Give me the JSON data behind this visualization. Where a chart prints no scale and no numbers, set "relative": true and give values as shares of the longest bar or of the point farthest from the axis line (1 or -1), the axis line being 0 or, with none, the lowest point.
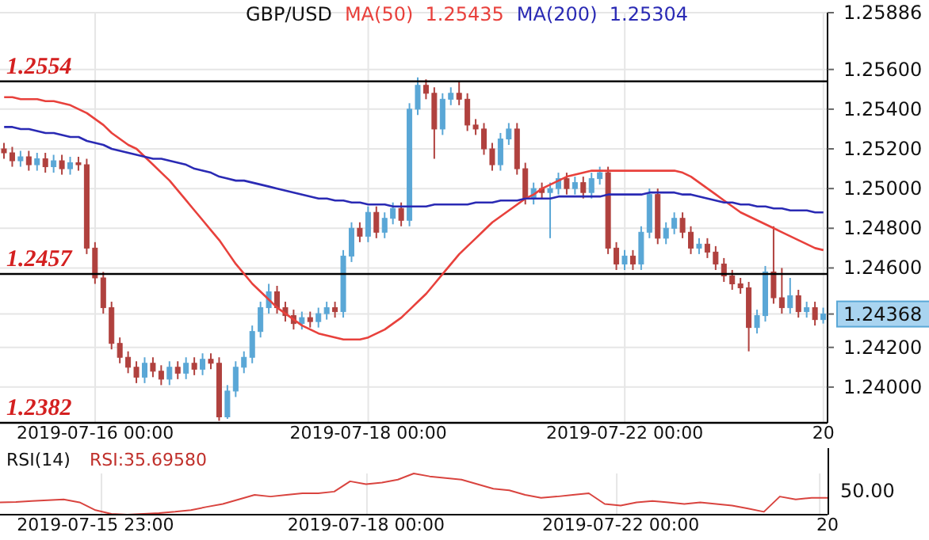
{
  "chart_data": [
    {
      "type": "candlestick",
      "title": "GBP/USD",
      "categories": [
        null,
        null,
        null,
        null,
        null,
        null,
        null,
        null,
        null,
        null,
        null,
        "2019-07-16 00:00",
        null,
        null,
        null,
        null,
        null,
        null,
        null,
        null,
        null,
        null,
        null,
        null,
        null,
        null,
        null,
        null,
        null,
        null,
        null,
        null,
        null,
        null,
        null,
        null,
        null,
        null,
        null,
        null,
        null,
        null,
        null,
        null,
        "2019-07-18 00:00",
        null,
        null,
        null,
        null,
        null,
        null,
        null,
        null,
        null,
        null,
        null,
        null,
        null,
        null,
        null,
        null,
        null,
        null,
        null,
        null,
        null,
        null,
        null,
        null,
        null,
        null,
        null,
        null,
        null,
        null,
        "2019-07-22 00:00",
        null,
        null,
        null,
        null,
        null,
        null,
        null,
        null,
        null,
        null,
        null,
        null,
        null,
        null,
        null,
        null,
        null,
        null,
        null,
        null,
        null,
        null,
        null,
        "20"
      ],
      "ohlc": [
        [
          1.252,
          1.2523,
          1.2515,
          1.2518
        ],
        [
          1.2518,
          1.2521,
          1.2511,
          1.2514
        ],
        [
          1.2514,
          1.2519,
          1.2511,
          1.2516
        ],
        [
          1.2516,
          1.2519,
          1.2509,
          1.2512
        ],
        [
          1.2512,
          1.2518,
          1.2509,
          1.2515
        ],
        [
          1.2515,
          1.2518,
          1.2508,
          1.2511
        ],
        [
          1.2511,
          1.2517,
          1.2508,
          1.2514
        ],
        [
          1.2514,
          1.2517,
          1.2507,
          1.251
        ],
        [
          1.251,
          1.2516,
          1.2507,
          1.2513
        ],
        [
          1.2513,
          1.2516,
          1.2509,
          1.2512
        ],
        [
          1.2512,
          1.2515,
          1.2467,
          1.247
        ],
        [
          1.247,
          1.2473,
          1.2452,
          1.2455
        ],
        [
          1.2455,
          1.2458,
          1.2437,
          1.244
        ],
        [
          1.244,
          1.2443,
          1.2419,
          1.2422
        ],
        [
          1.2422,
          1.2425,
          1.2412,
          1.2415
        ],
        [
          1.2415,
          1.2418,
          1.2407,
          1.241
        ],
        [
          1.241,
          1.2413,
          1.2402,
          1.2405
        ],
        [
          1.2405,
          1.2415,
          1.2402,
          1.2412
        ],
        [
          1.2412,
          1.2415,
          1.2405,
          1.2408
        ],
        [
          1.2408,
          1.2411,
          1.2401,
          1.2404
        ],
        [
          1.2404,
          1.2413,
          1.2401,
          1.241
        ],
        [
          1.241,
          1.2413,
          1.2404,
          1.2407
        ],
        [
          1.2407,
          1.2415,
          1.2404,
          1.2412
        ],
        [
          1.2412,
          1.2415,
          1.2406,
          1.2409
        ],
        [
          1.2409,
          1.2417,
          1.2406,
          1.2414
        ],
        [
          1.2414,
          1.2417,
          1.2409,
          1.2412
        ],
        [
          1.2412,
          1.2415,
          1.2383,
          1.2385
        ],
        [
          1.2385,
          1.2401,
          1.2384,
          1.2398
        ],
        [
          1.2398,
          1.2413,
          1.2395,
          1.241
        ],
        [
          1.241,
          1.2418,
          1.2407,
          1.2415
        ],
        [
          1.2415,
          1.2431,
          1.2412,
          1.2428
        ],
        [
          1.2428,
          1.2443,
          1.2425,
          1.244
        ],
        [
          1.244,
          1.2452,
          1.2437,
          1.2448
        ],
        [
          1.2448,
          1.2451,
          1.2437,
          1.244
        ],
        [
          1.244,
          1.2443,
          1.2433,
          1.2436
        ],
        [
          1.2436,
          1.2439,
          1.2429,
          1.2432
        ],
        [
          1.2432,
          1.2438,
          1.2429,
          1.2435
        ],
        [
          1.2435,
          1.2438,
          1.243,
          1.2433
        ],
        [
          1.2433,
          1.244,
          1.243,
          1.2437
        ],
        [
          1.2437,
          1.2443,
          1.2434,
          1.244
        ],
        [
          1.244,
          1.2443,
          1.2435,
          1.2438
        ],
        [
          1.2438,
          1.2469,
          1.2435,
          1.2466
        ],
        [
          1.2466,
          1.2483,
          1.2463,
          1.248
        ],
        [
          1.248,
          1.2483,
          1.2473,
          1.2476
        ],
        [
          1.2476,
          1.2491,
          1.2473,
          1.2488
        ],
        [
          1.2488,
          1.2491,
          1.2475,
          1.2478
        ],
        [
          1.2478,
          1.2488,
          1.2475,
          1.2485
        ],
        [
          1.2485,
          1.2493,
          1.2482,
          1.249
        ],
        [
          1.249,
          1.2493,
          1.2481,
          1.2484
        ],
        [
          1.2484,
          1.2543,
          1.2481,
          1.254
        ],
        [
          1.254,
          1.2556,
          1.2537,
          1.2552
        ],
        [
          1.2552,
          1.2555,
          1.2545,
          1.2548
        ],
        [
          1.2548,
          1.2551,
          1.2515,
          1.253
        ],
        [
          1.253,
          1.2548,
          1.2527,
          1.2545
        ],
        [
          1.2545,
          1.2551,
          1.2542,
          1.2548
        ],
        [
          1.2548,
          1.2554,
          1.2542,
          1.2545
        ],
        [
          1.2545,
          1.2548,
          1.2529,
          1.2532
        ],
        [
          1.2532,
          1.2535,
          1.2527,
          1.253
        ],
        [
          1.253,
          1.2533,
          1.2517,
          1.252
        ],
        [
          1.252,
          1.2523,
          1.2509,
          1.2512
        ],
        [
          1.2512,
          1.2528,
          1.2509,
          1.2525
        ],
        [
          1.2525,
          1.2533,
          1.2522,
          1.253
        ],
        [
          1.253,
          1.2533,
          1.2507,
          1.251
        ],
        [
          1.251,
          1.2513,
          1.2492,
          1.2495
        ],
        [
          1.2495,
          1.2503,
          1.2492,
          1.25
        ],
        [
          1.25,
          1.2503,
          1.2495,
          1.2498
        ],
        [
          1.2498,
          1.2503,
          1.2475,
          1.25
        ],
        [
          1.25,
          1.2508,
          1.2497,
          1.2505
        ],
        [
          1.2505,
          1.2508,
          1.2497,
          1.25
        ],
        [
          1.25,
          1.2506,
          1.2497,
          1.2503
        ],
        [
          1.2503,
          1.2506,
          1.2495,
          1.2498
        ],
        [
          1.2498,
          1.2508,
          1.2495,
          1.2505
        ],
        [
          1.2505,
          1.2511,
          1.2502,
          1.2508
        ],
        [
          1.2508,
          1.2511,
          1.2467,
          1.247
        ],
        [
          1.247,
          1.2473,
          1.2459,
          1.2462
        ],
        [
          1.2462,
          1.2469,
          1.2459,
          1.2466
        ],
        [
          1.2466,
          1.2469,
          1.2459,
          1.2462
        ],
        [
          1.2462,
          1.2481,
          1.2459,
          1.2478
        ],
        [
          1.2478,
          1.25,
          1.2475,
          1.2497
        ],
        [
          1.2497,
          1.25,
          1.2472,
          1.2475
        ],
        [
          1.2475,
          1.2483,
          1.2472,
          1.248
        ],
        [
          1.248,
          1.2488,
          1.2477,
          1.2485
        ],
        [
          1.2485,
          1.2488,
          1.2475,
          1.2478
        ],
        [
          1.2478,
          1.2481,
          1.2467,
          1.247
        ],
        [
          1.247,
          1.2475,
          1.2467,
          1.2472
        ],
        [
          1.2472,
          1.2475,
          1.2465,
          1.2468
        ],
        [
          1.2468,
          1.2471,
          1.2459,
          1.2462
        ],
        [
          1.2462,
          1.2465,
          1.2453,
          1.2456
        ],
        [
          1.2456,
          1.2459,
          1.2449,
          1.2452
        ],
        [
          1.2452,
          1.2455,
          1.2447,
          1.245
        ],
        [
          1.245,
          1.2453,
          1.2418,
          1.243
        ],
        [
          1.243,
          1.2439,
          1.2427,
          1.2436
        ],
        [
          1.2436,
          1.2461,
          1.2433,
          1.2458
        ],
        [
          1.2458,
          1.2481,
          1.2442,
          1.2445
        ],
        [
          1.2445,
          1.246,
          1.2437,
          1.244
        ],
        [
          1.244,
          1.2455,
          1.2437,
          1.2446
        ],
        [
          1.2446,
          1.2449,
          1.2435,
          1.2438
        ],
        [
          1.2438,
          1.2443,
          1.2435,
          1.244
        ],
        [
          1.244,
          1.2443,
          1.2431,
          1.2434
        ],
        [
          1.2434,
          1.244,
          1.2432,
          1.24368
        ]
      ],
      "series": [
        {
          "name": "MA(50)",
          "type": "line",
          "color": "#e8413c",
          "values": [
            1.2546,
            1.2546,
            1.2545,
            1.2545,
            1.2545,
            1.2544,
            1.2544,
            1.2543,
            1.2542,
            1.254,
            1.2538,
            1.2535,
            1.2532,
            1.2528,
            1.2525,
            1.2522,
            1.252,
            1.2516,
            1.2512,
            1.2508,
            1.2504,
            1.2499,
            1.2494,
            1.2489,
            1.2484,
            1.2479,
            1.2474,
            1.2468,
            1.2462,
            1.2457,
            1.2452,
            1.2448,
            1.2444,
            1.244,
            1.2437,
            1.2434,
            1.2431,
            1.2429,
            1.2427,
            1.2426,
            1.2425,
            1.2424,
            1.2424,
            1.2424,
            1.2425,
            1.2427,
            1.2429,
            1.2432,
            1.2435,
            1.2439,
            1.2443,
            1.2447,
            1.2452,
            1.2457,
            1.2462,
            1.2467,
            1.2471,
            1.2475,
            1.2479,
            1.2483,
            1.2486,
            1.2489,
            1.2492,
            1.2495,
            1.2497,
            1.25,
            1.2502,
            1.2504,
            1.2506,
            1.2507,
            1.2508,
            1.2509,
            1.2509,
            1.2509,
            1.2509,
            1.2509,
            1.2509,
            1.2509,
            1.2509,
            1.2509,
            1.2509,
            1.2509,
            1.2508,
            1.2506,
            1.2503,
            1.25,
            1.2497,
            1.2494,
            1.2491,
            1.2488,
            1.2486,
            1.2484,
            1.2482,
            1.248,
            1.2478,
            1.2476,
            1.2474,
            1.2472,
            1.247,
            1.2469
          ]
        },
        {
          "name": "MA(200)",
          "type": "line",
          "color": "#2a2ab4",
          "values": [
            1.2531,
            1.2531,
            1.253,
            1.253,
            1.2529,
            1.2528,
            1.2528,
            1.2527,
            1.2526,
            1.2526,
            1.2524,
            1.2523,
            1.2522,
            1.252,
            1.2519,
            1.2518,
            1.2517,
            1.2516,
            1.2515,
            1.2515,
            1.2514,
            1.2513,
            1.2512,
            1.251,
            1.2509,
            1.2508,
            1.2506,
            1.2505,
            1.2504,
            1.2504,
            1.2503,
            1.2502,
            1.2501,
            1.25,
            1.2499,
            1.2498,
            1.2497,
            1.2496,
            1.2495,
            1.2495,
            1.2494,
            1.2494,
            1.2493,
            1.2493,
            1.2492,
            1.2492,
            1.2492,
            1.2491,
            1.2491,
            1.2491,
            1.2491,
            1.2491,
            1.2492,
            1.2492,
            1.2492,
            1.2492,
            1.2492,
            1.2493,
            1.2493,
            1.2493,
            1.2494,
            1.2494,
            1.2494,
            1.2495,
            1.2495,
            1.2495,
            1.2495,
            1.2496,
            1.2496,
            1.2496,
            1.2496,
            1.2496,
            1.2496,
            1.2497,
            1.2497,
            1.2497,
            1.2497,
            1.2497,
            1.2498,
            1.2498,
            1.2498,
            1.2498,
            1.2497,
            1.2497,
            1.2496,
            1.2495,
            1.2494,
            1.2493,
            1.2493,
            1.2492,
            1.2492,
            1.2491,
            1.2491,
            1.249,
            1.249,
            1.2489,
            1.2489,
            1.2489,
            1.2488,
            1.2488
          ]
        }
      ],
      "annotations": [
        "1.25435",
        "1.25304"
      ],
      "ylim": [
        1.2382,
        1.25886
      ],
      "yticks": [
        {
          "value": 1.24,
          "label": "1.24000"
        },
        {
          "value": 1.242,
          "label": "1.24200"
        },
        {
          "value": 1.24368,
          "label": "1.24368"
        },
        {
          "value": 1.246,
          "label": "1.24600"
        },
        {
          "value": 1.248,
          "label": "1.24800"
        },
        {
          "value": 1.25,
          "label": "1.25000"
        },
        {
          "value": 1.252,
          "label": "1.25200"
        },
        {
          "value": 1.254,
          "label": "1.25400"
        },
        {
          "value": 1.256,
          "label": "1.25600"
        },
        {
          "value": 1.25886,
          "label": "1.25886"
        }
      ],
      "ref_lines": [
        {
          "axis": "y",
          "value": 1.2554,
          "label": "1.2554",
          "color": "#000000"
        },
        {
          "axis": "y",
          "value": 1.2457,
          "label": "1.2457",
          "color": "#000000"
        },
        {
          "axis": "y",
          "value": 1.2382,
          "label": "1.2382",
          "color": "#000000"
        }
      ],
      "grid": true,
      "legend": "top"
    },
    {
      "type": "line",
      "title": "RSI(14)",
      "relative": true,
      "categories": [
        null,
        null,
        null,
        null,
        null,
        null,
        "2019-07-15 23:00",
        null,
        null,
        null,
        null,
        null,
        null,
        null,
        null,
        null,
        null,
        null,
        null,
        null,
        null,
        null,
        null,
        "2019-07-18 00:00",
        null,
        null,
        null,
        null,
        null,
        null,
        null,
        null,
        null,
        null,
        null,
        null,
        null,
        null,
        null,
        "2019-07-22 00:00",
        null,
        null,
        null,
        null,
        null,
        null,
        null,
        null,
        null,
        null,
        null,
        null,
        "20"
      ],
      "series": [
        {
          "color": "#d9443f",
          "values": [
            0.3,
            0.31,
            0.33,
            0.35,
            0.37,
            0.3,
            0.11,
            0.02,
            0,
            0.02,
            0.04,
            0.07,
            0.11,
            0.19,
            0.26,
            0.37,
            0.48,
            0.44,
            0.48,
            0.52,
            0.52,
            0.56,
            0.81,
            0.74,
            0.78,
            0.85,
            1,
            0.93,
            0.89,
            0.85,
            0.74,
            0.63,
            0.59,
            0.48,
            0.41,
            0.44,
            0.48,
            0.52,
            0.26,
            0.22,
            0.3,
            0.33,
            0.3,
            0.26,
            0.3,
            0.26,
            0.22,
            0.15,
            0.07,
            0.44,
            0.37,
            0.41,
            0.41
          ]
        }
      ],
      "annotations": [
        "RSI:35.69580",
        "50.00"
      ],
      "grid": "x"
    }
  ]
}
